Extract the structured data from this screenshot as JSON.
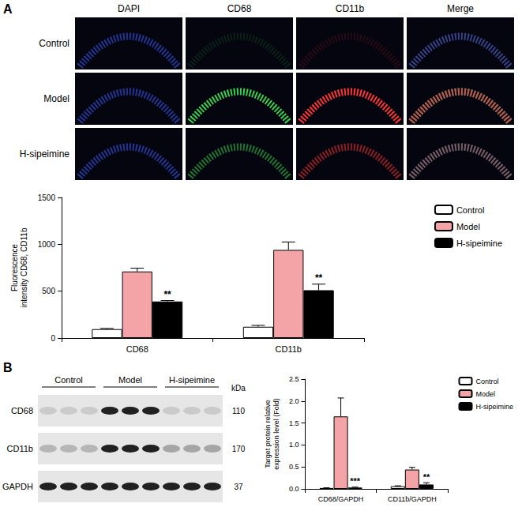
{
  "panel_labels": [
    "A",
    "B"
  ],
  "microscopy": {
    "columns": [
      "DAPI",
      "CD68",
      "CD11b",
      "Merge"
    ],
    "rows": [
      "Control",
      "Model",
      "H-sipeimine"
    ]
  },
  "blot": {
    "groups": [
      "Control",
      "Model",
      "H-sipeimine"
    ],
    "unit": "kDa",
    "bands": [
      {
        "name": "CD68",
        "kda": 110
      },
      {
        "name": "CD11b",
        "kda": 170
      },
      {
        "name": "GAPDH",
        "kda": 37
      }
    ]
  },
  "chart_data": [
    {
      "type": "bar",
      "ylabel": "Fluorescence intensity CD68, CD11b",
      "categories": [
        "CD68",
        "CD11b"
      ],
      "series": [
        {
          "name": "Control",
          "color": "#ffffff",
          "values": [
            95,
            120
          ],
          "errors": [
            8,
            15
          ]
        },
        {
          "name": "Model",
          "color": "#f4a3a6",
          "values": [
            710,
            940
          ],
          "errors": [
            35,
            85
          ]
        },
        {
          "name": "H-sipeimine",
          "color": "#000000",
          "values": [
            390,
            510
          ],
          "errors": [
            10,
            65
          ],
          "annotations": [
            "**",
            "**"
          ]
        }
      ],
      "ylim": [
        0,
        1500
      ],
      "yticks": [
        0,
        500,
        1000,
        1500
      ],
      "grid": false,
      "legend": "right"
    },
    {
      "type": "bar",
      "ylabel": "Target protein relative expression level (Fold)",
      "categories": [
        "CD68/GAPDH",
        "CD11b/GAPDH"
      ],
      "series": [
        {
          "name": "Control",
          "color": "#ffffff",
          "values": [
            0.02,
            0.06
          ],
          "errors": [
            0.005,
            0.01
          ]
        },
        {
          "name": "Model",
          "color": "#f4a3a6",
          "values": [
            1.65,
            0.44
          ],
          "errors": [
            0.42,
            0.05
          ]
        },
        {
          "name": "H-sipeimine",
          "color": "#000000",
          "values": [
            0.03,
            0.1
          ],
          "errors": [
            0.01,
            0.04
          ],
          "annotations": [
            "***",
            "**"
          ]
        }
      ],
      "ylim": [
        0,
        2.5
      ],
      "yticks": [
        {
          "value": 0,
          "label": "0.0"
        },
        0.5,
        {
          "value": 1,
          "label": "1.0"
        },
        1.5,
        {
          "value": 2,
          "label": "2.0"
        },
        2.5
      ],
      "grid": false,
      "legend": "right"
    }
  ]
}
